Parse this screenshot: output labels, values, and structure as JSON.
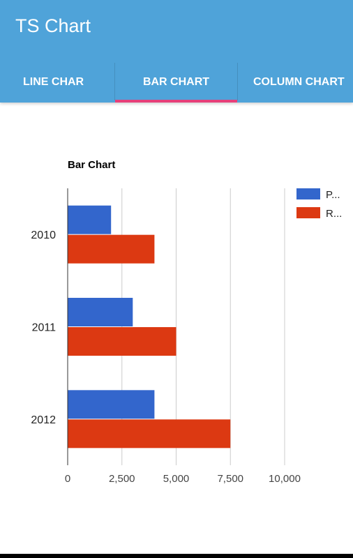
{
  "app": {
    "title": "TS Chart"
  },
  "tabs": [
    {
      "label": "LINE CHAR",
      "selected": false
    },
    {
      "label": "BAR CHART",
      "selected": true
    },
    {
      "label": "COLUMN CHART",
      "selected": false
    }
  ],
  "colors": {
    "app_bar": "#4fa3d9",
    "tab_indicator": "#e6407a",
    "series_p": "#3366cc",
    "series_r": "#dc3912",
    "grid": "#cccccc"
  },
  "chart_data": {
    "type": "bar",
    "orientation": "horizontal",
    "title": "Bar Chart",
    "categories": [
      "2010",
      "2011",
      "2012"
    ],
    "series": [
      {
        "name": "P...",
        "values": [
          2000,
          3000,
          4000
        ]
      },
      {
        "name": "R...",
        "values": [
          4000,
          5000,
          7500
        ]
      }
    ],
    "xlim": [
      0,
      10000
    ],
    "x_ticks": [
      0,
      2500,
      5000,
      7500,
      10000
    ],
    "x_tick_labels": [
      "0",
      "2,500",
      "5,000",
      "7,500",
      "10,000"
    ],
    "xlabel": "",
    "ylabel": "",
    "grid": true,
    "legend_position": "right"
  }
}
